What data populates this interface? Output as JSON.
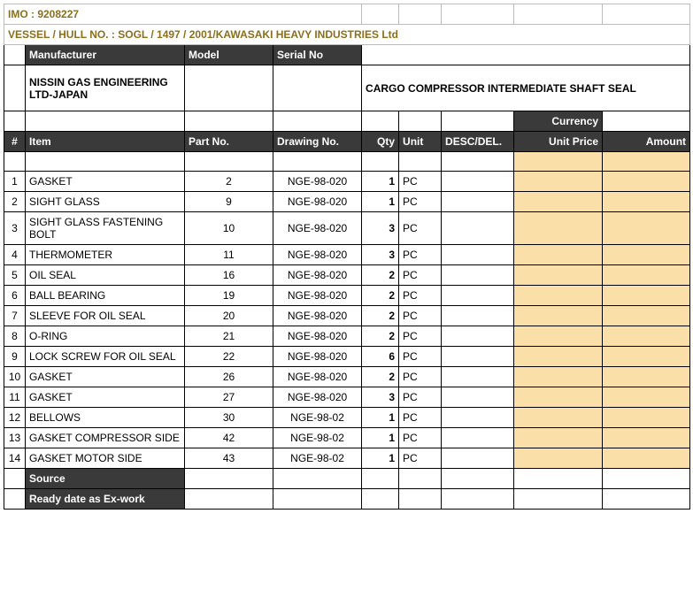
{
  "header": {
    "imo": "IMO : 9208227",
    "vessel": "VESSEL / HULL NO. : SOGL / 1497 / 2001/KAWASAKI HEAVY INDUSTRIES Ltd",
    "manufacturer_label": "Manufacturer",
    "model_label": "Model",
    "serial_label": "Serial No",
    "manufacturer_value": "NISSIN GAS ENGINEERING LTD-JAPAN",
    "equipment_title": "CARGO COMPRESSOR INTERMEDIATE SHAFT SEAL",
    "currency_label": "Currency"
  },
  "cols": {
    "num": "#",
    "item": "Item",
    "part": "Part No.",
    "drawing": "Drawing No.",
    "qty": "Qty",
    "unit": "Unit",
    "desc": "DESC/DEL.",
    "unitprice": "Unit Price",
    "amount": "Amount"
  },
  "rows": [
    {
      "n": "1",
      "item": "GASKET",
      "part": "2",
      "drawing": "NGE-98-020",
      "qty": "1",
      "unit": "PC"
    },
    {
      "n": "2",
      "item": "SIGHT GLASS",
      "part": "9",
      "drawing": "NGE-98-020",
      "qty": "1",
      "unit": "PC"
    },
    {
      "n": "3",
      "item": "SIGHT GLASS FASTENING BOLT",
      "part": "10",
      "drawing": "NGE-98-020",
      "qty": "3",
      "unit": "PC"
    },
    {
      "n": "4",
      "item": "THERMOMETER",
      "part": "11",
      "drawing": "NGE-98-020",
      "qty": "3",
      "unit": "PC"
    },
    {
      "n": "5",
      "item": "OIL SEAL",
      "part": "16",
      "drawing": "NGE-98-020",
      "qty": "2",
      "unit": "PC"
    },
    {
      "n": "6",
      "item": "BALL BEARING",
      "part": "19",
      "drawing": "NGE-98-020",
      "qty": "2",
      "unit": "PC"
    },
    {
      "n": "7",
      "item": "SLEEVE FOR OIL SEAL",
      "part": "20",
      "drawing": "NGE-98-020",
      "qty": "2",
      "unit": "PC"
    },
    {
      "n": "8",
      "item": "O-RING",
      "part": "21",
      "drawing": "NGE-98-020",
      "qty": "2",
      "unit": "PC"
    },
    {
      "n": "9",
      "item": "LOCK SCREW FOR OIL SEAL",
      "part": "22",
      "drawing": "NGE-98-020",
      "qty": "6",
      "unit": "PC"
    },
    {
      "n": "10",
      "item": "GASKET",
      "part": "26",
      "drawing": "NGE-98-020",
      "qty": "2",
      "unit": "PC"
    },
    {
      "n": "11",
      "item": "GASKET",
      "part": "27",
      "drawing": "NGE-98-020",
      "qty": "3",
      "unit": "PC"
    },
    {
      "n": "12",
      "item": "BELLOWS",
      "part": "30",
      "drawing": "NGE-98-02",
      "qty": "1",
      "unit": "PC"
    },
    {
      "n": "13",
      "item": "GASKET COMPRESSOR SIDE",
      "part": "42",
      "drawing": "NGE-98-02",
      "qty": "1",
      "unit": "PC"
    },
    {
      "n": "14",
      "item": "GASKET MOTOR SIDE",
      "part": "43",
      "drawing": "NGE-98-02",
      "qty": "1",
      "unit": "PC"
    }
  ],
  "footer": {
    "source": "Source",
    "ready": "Ready date as Ex-work"
  },
  "colors": {
    "dark": "#3a3a3a",
    "tan": "#fadfa8",
    "brown": "#8b6f1c"
  }
}
